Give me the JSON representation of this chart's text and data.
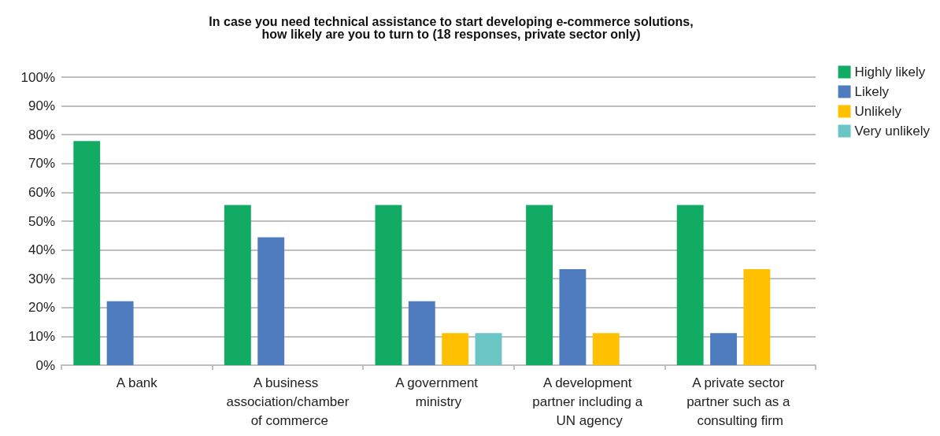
{
  "chart_data": {
    "type": "bar",
    "title": "In case you need technical assistance to start developing e-commerce solutions,\nhow likely are you to turn to (18 responses, private sector only)",
    "categories": [
      "A bank",
      "A business association/chamber of commerce",
      "A government ministry",
      "A development partner including a UN agency",
      "A private sector partner such as a consulting firm"
    ],
    "series": [
      {
        "name": "Highly likely",
        "color": "#12ab63",
        "values": [
          77.8,
          55.6,
          55.6,
          55.6,
          55.6
        ]
      },
      {
        "name": "Likely",
        "color": "#4f7cbf",
        "values": [
          22.2,
          44.4,
          22.2,
          33.3,
          11.1
        ]
      },
      {
        "name": "Unlikely",
        "color": "#ffc000",
        "values": [
          0,
          0,
          11.1,
          11.1,
          33.3
        ]
      },
      {
        "name": "Very unlikely",
        "color": "#6cc5c5",
        "values": [
          0,
          0,
          11.1,
          0,
          0
        ]
      }
    ],
    "ylim": [
      0,
      100
    ],
    "yticks": [
      {
        "value": 0,
        "label": "0%"
      },
      {
        "value": 10,
        "label": "10%"
      },
      {
        "value": 20,
        "label": "20%"
      },
      {
        "value": 30,
        "label": "30%"
      },
      {
        "value": 40,
        "label": "40%"
      },
      {
        "value": 50,
        "label": "50%"
      },
      {
        "value": 60,
        "label": "60%"
      },
      {
        "value": 70,
        "label": "70%"
      },
      {
        "value": 80,
        "label": "80%"
      },
      {
        "value": 90,
        "label": "90%"
      },
      {
        "value": 100,
        "label": "100%"
      }
    ],
    "grid": "y",
    "legend": "top right"
  }
}
